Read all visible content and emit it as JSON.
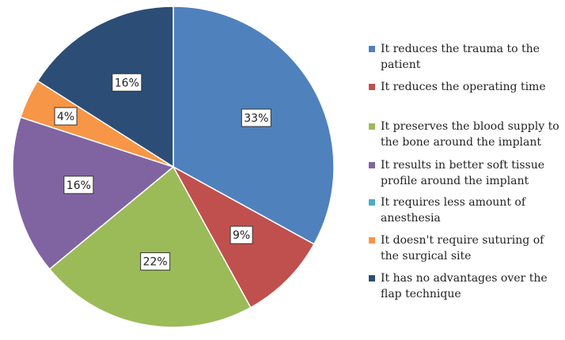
{
  "chart_data": {
    "type": "pie",
    "title": "",
    "start_angle_deg": 0,
    "direction": "clockwise",
    "labels": [
      "It reduces the trauma to the patient",
      "It reduces the operating time",
      "It preserves the blood supply to the bone around the implant",
      "It results in better soft tissue profile around the implant",
      "It requires less amount of anesthesia",
      "It doesn't require suturing of the surgical site",
      "It has no advantages over the flap technique"
    ],
    "values": [
      33,
      9,
      22,
      16,
      0,
      4,
      16
    ],
    "value_labels": [
      "33%",
      "9%",
      "22%",
      "16%",
      "",
      "4%",
      "16%"
    ],
    "colors": [
      "#4F81BD",
      "#C0504D",
      "#9BBB59",
      "#8064A2",
      "#4BACC6",
      "#F79646",
      "#2C4D75"
    ],
    "legend_position": "right"
  }
}
